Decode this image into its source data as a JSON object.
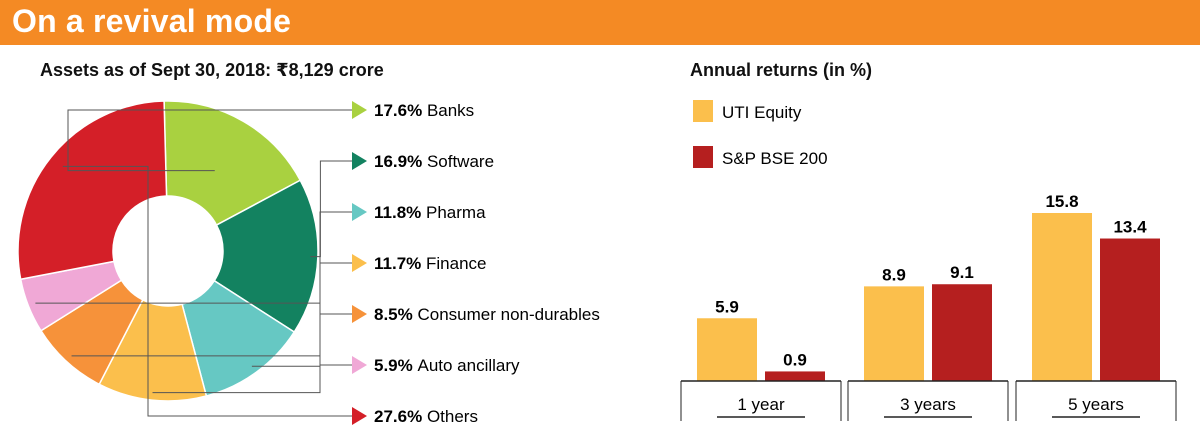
{
  "header": {
    "title": "On a revival mode"
  },
  "colors": {
    "header_bg": "#f48a24",
    "uti_equity": "#fbbf4c",
    "sp_bse_200": "#b51f1f"
  },
  "chart_data": [
    {
      "type": "pie",
      "style": "donut",
      "title": "Assets as of Sept 30, 2018: ₹8,129 crore",
      "legend_position": "right",
      "slices": [
        {
          "label": "Banks",
          "percent_label": "17.6%",
          "value": 17.6,
          "color": "#a9d140"
        },
        {
          "label": "Software",
          "percent_label": "16.9%",
          "value": 16.9,
          "color": "#138260"
        },
        {
          "label": "Pharma",
          "percent_label": "11.8%",
          "value": 11.8,
          "color": "#66c8c3"
        },
        {
          "label": "Finance",
          "percent_label": "11.7%",
          "value": 11.7,
          "color": "#fbbf4c"
        },
        {
          "label": "Consumer non-durables",
          "percent_label": "8.5%",
          "value": 8.5,
          "color": "#f6923a"
        },
        {
          "label": "Auto ancillary",
          "percent_label": "5.9%",
          "value": 5.9,
          "color": "#f0a8d6"
        },
        {
          "label": "Others",
          "percent_label": "27.6%",
          "value": 27.6,
          "color": "#d41f28"
        }
      ]
    },
    {
      "type": "bar",
      "title": "Annual returns (in %)",
      "legend_position": "top-left",
      "categories": [
        "1 year",
        "3 years",
        "5 years"
      ],
      "series": [
        {
          "name": "UTI Equity",
          "values": [
            5.9,
            8.9,
            15.8
          ],
          "labels": [
            "5.9",
            "8.9",
            "15.8"
          ],
          "color": "#fbbf4c"
        },
        {
          "name": "S&P BSE 200",
          "values": [
            0.9,
            9.1,
            13.4
          ],
          "labels": [
            "0.9",
            "9.1",
            "13.4"
          ],
          "color": "#b51f1f"
        }
      ],
      "ylim": [
        0,
        16
      ],
      "grid": false
    }
  ]
}
